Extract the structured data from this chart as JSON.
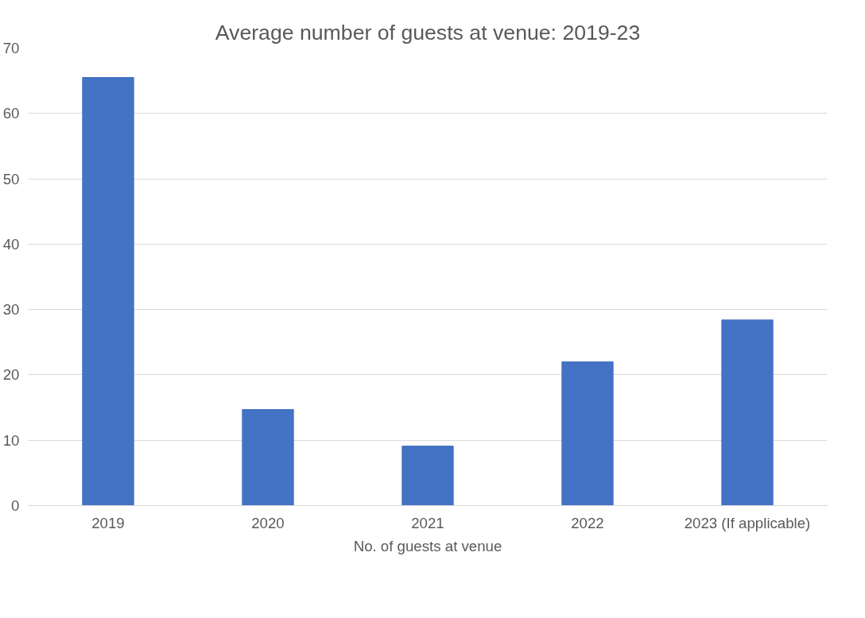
{
  "chart_data": {
    "type": "bar",
    "title": "Average number of guests at venue: 2019-23",
    "xlabel": "No. of guests at venue",
    "categories": [
      "2019",
      "2020",
      "2021",
      "2022",
      "2023 (If applicable)"
    ],
    "values": [
      65.5,
      14.7,
      9.1,
      22,
      28.4
    ],
    "color": "#4472c4",
    "ylim": [
      0,
      70
    ],
    "yticks": [
      0,
      10,
      20,
      30,
      40,
      50,
      60,
      70
    ],
    "grid": "y"
  }
}
